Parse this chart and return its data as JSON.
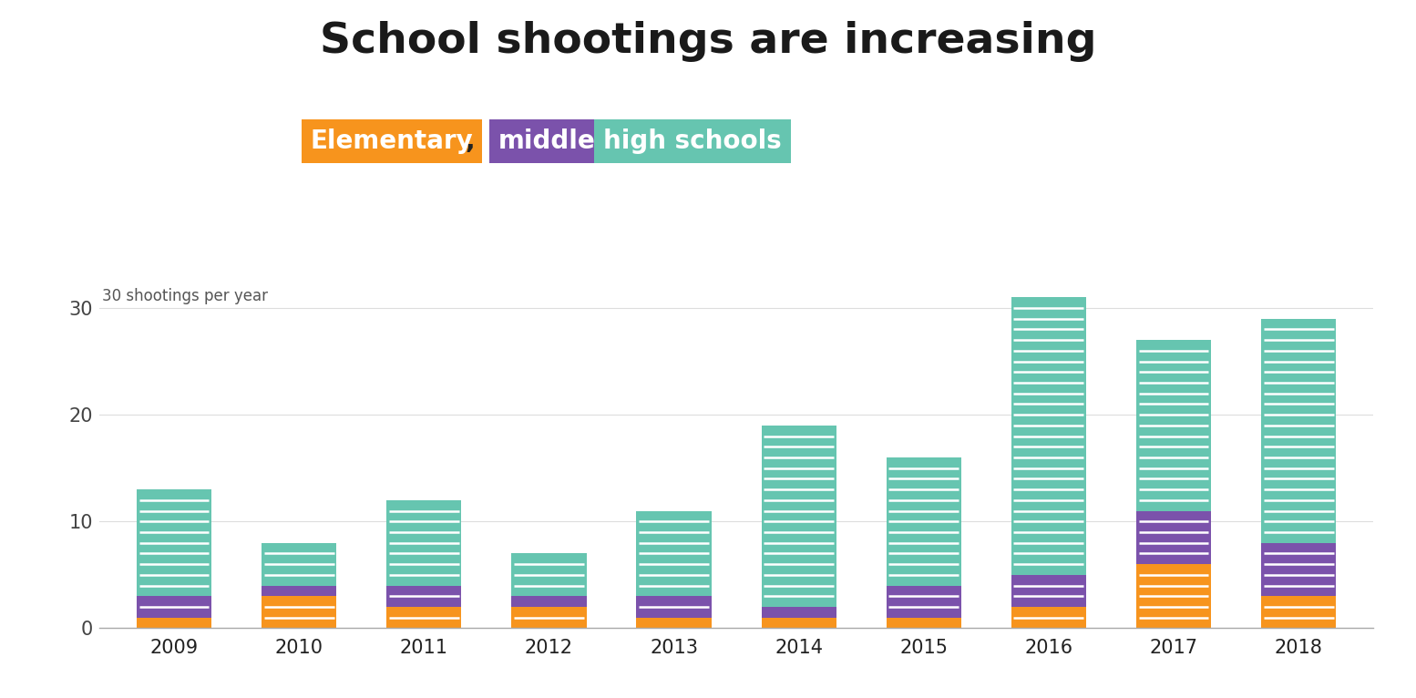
{
  "title": "School shootings are increasing",
  "years": [
    "2009",
    "2010",
    "2011",
    "2012",
    "2013",
    "2014",
    "2015",
    "2016",
    "2017",
    "2018"
  ],
  "elementary": [
    1,
    3,
    2,
    2,
    1,
    1,
    1,
    2,
    6,
    3
  ],
  "middle": [
    2,
    1,
    2,
    1,
    2,
    1,
    3,
    3,
    5,
    5
  ],
  "high": [
    10,
    4,
    8,
    4,
    8,
    17,
    12,
    26,
    16,
    21
  ],
  "colors": {
    "elementary": "#F7941D",
    "middle": "#7B52AB",
    "high": "#66C5B0"
  },
  "yticks": [
    0,
    10,
    20,
    30
  ],
  "ylim": [
    0,
    34
  ],
  "bar_width": 0.6,
  "title_fontsize": 34,
  "tick_fontsize": 15,
  "bg_color": "#FFFFFF",
  "grid_color": "#DDDDDD"
}
